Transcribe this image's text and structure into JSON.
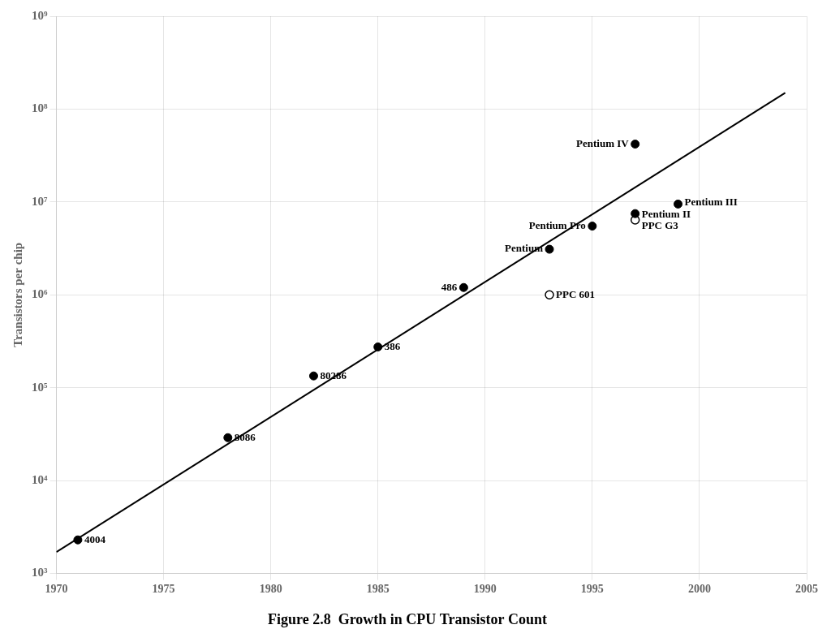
{
  "chart_data": {
    "type": "scatter",
    "title": "Figure 2.8  Growth in CPU Transistor Count",
    "ylabel": "Transistors per chip",
    "log": "y",
    "grid": true,
    "xlim": [
      1970,
      2005
    ],
    "xticks": [
      1970,
      1975,
      1980,
      1985,
      1990,
      1995,
      2000,
      2005
    ],
    "ylim": [
      1000,
      1000000000
    ],
    "yticks": [
      {
        "value": 1000,
        "label": "10³"
      },
      {
        "value": 10000,
        "label": "10⁴"
      },
      {
        "value": 100000,
        "label": "10⁵"
      },
      {
        "value": 1000000,
        "label": "10⁶"
      },
      {
        "value": 10000000,
        "label": "10⁷"
      },
      {
        "value": 100000000,
        "label": "10⁸"
      },
      {
        "value": 1000000000,
        "label": "10⁹"
      }
    ],
    "series": [
      {
        "type": "line",
        "color": "#000000",
        "line_style": "solid",
        "x": [
          1970,
          2004
        ],
        "values": [
          1700,
          150000000
        ]
      },
      {
        "type": "scatter",
        "color": "#000000",
        "marker": "circle",
        "x": [
          1971,
          1978,
          1982,
          1985,
          1989,
          1993,
          1995,
          1997,
          1999,
          1997
        ],
        "values": [
          2300,
          29000,
          134000,
          275000,
          1200000,
          3100000,
          5500000,
          7500000,
          9500000,
          42000000
        ]
      },
      {
        "type": "scatter",
        "color": "#000000",
        "marker": "circle_open",
        "x": [
          1993,
          1997
        ],
        "values": [
          1000000,
          6400000
        ]
      }
    ],
    "annotations": [
      {
        "text": "4004",
        "x": 1971,
        "y": 2300,
        "side": "right"
      },
      {
        "text": "8086",
        "x": 1978,
        "y": 29000,
        "side": "right"
      },
      {
        "text": "80286",
        "x": 1982,
        "y": 134000,
        "side": "right"
      },
      {
        "text": "386",
        "x": 1985,
        "y": 275000,
        "side": "right"
      },
      {
        "text": "486",
        "x": 1989,
        "y": 1200000,
        "side": "left"
      },
      {
        "text": "Pentium",
        "x": 1993,
        "y": 3100000,
        "side": "left"
      },
      {
        "text": "Pentium Pro",
        "x": 1995,
        "y": 5500000,
        "side": "left"
      },
      {
        "text": "Pentium II",
        "x": 1997,
        "y": 7500000,
        "side": "right"
      },
      {
        "text": "Pentium III",
        "x": 1999,
        "y": 9500000,
        "side": "right"
      },
      {
        "text": "Pentium IV",
        "x": 1997,
        "y": 42000000,
        "side": "left"
      },
      {
        "text": "PPC 601",
        "x": 1993,
        "y": 1000000,
        "side": "right"
      },
      {
        "text": "PPC G3",
        "x": 1997,
        "y": 6400000,
        "side": "right"
      }
    ]
  }
}
